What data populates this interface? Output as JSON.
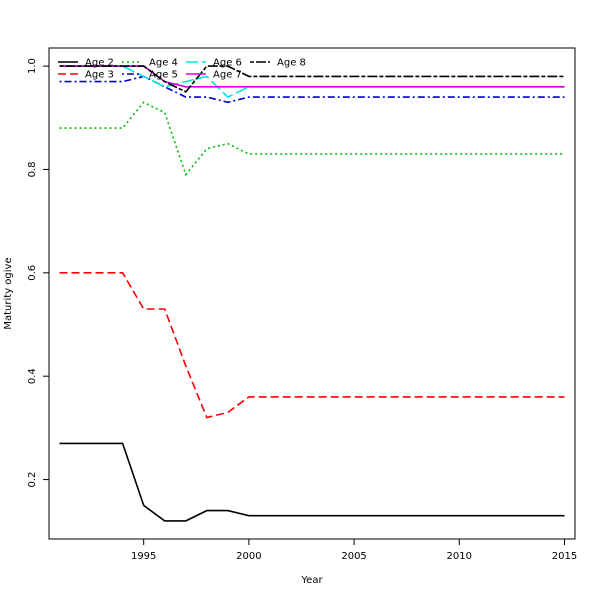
{
  "chart_data": {
    "type": "line",
    "title": "",
    "xlabel": "Year",
    "ylabel": "Maturity ogive",
    "xlim": [
      1990.5,
      2015.5
    ],
    "ylim": [
      0.085,
      1.035
    ],
    "x_ticks": [
      1995,
      2000,
      2005,
      2010,
      2015
    ],
    "y_ticks": [
      0.2,
      0.4,
      0.6,
      0.8,
      1.0
    ],
    "y_tick_labels": [
      "0.2",
      "0.4",
      "0.6",
      "0.8",
      "1.0"
    ],
    "grid": false,
    "legend_position": "top-left",
    "x": [
      1991,
      1992,
      1993,
      1994,
      1995,
      1996,
      1997,
      1998,
      1999,
      2000,
      2001,
      2002,
      2003,
      2004,
      2005,
      2006,
      2007,
      2008,
      2009,
      2010,
      2011,
      2012,
      2013,
      2014,
      2015
    ],
    "series": [
      {
        "name": "Age 2",
        "color": "#000000",
        "dash": "solid",
        "values": [
          0.27,
          0.27,
          0.27,
          0.27,
          0.15,
          0.12,
          0.12,
          0.14,
          0.14,
          0.13,
          0.13,
          0.13,
          0.13,
          0.13,
          0.13,
          0.13,
          0.13,
          0.13,
          0.13,
          0.13,
          0.13,
          0.13,
          0.13,
          0.13,
          0.13
        ]
      },
      {
        "name": "Age 3",
        "color": "#ff0000",
        "dash": "dashed",
        "values": [
          0.6,
          0.6,
          0.6,
          0.6,
          0.53,
          0.53,
          0.42,
          0.32,
          0.33,
          0.36,
          0.36,
          0.36,
          0.36,
          0.36,
          0.36,
          0.36,
          0.36,
          0.36,
          0.36,
          0.36,
          0.36,
          0.36,
          0.36,
          0.36,
          0.36
        ]
      },
      {
        "name": "Age 4",
        "color": "#00bb00",
        "dash": "dotted",
        "values": [
          0.88,
          0.88,
          0.88,
          0.88,
          0.93,
          0.91,
          0.79,
          0.84,
          0.85,
          0.83,
          0.83,
          0.83,
          0.83,
          0.83,
          0.83,
          0.83,
          0.83,
          0.83,
          0.83,
          0.83,
          0.83,
          0.83,
          0.83,
          0.83,
          0.83
        ]
      },
      {
        "name": "Age 5",
        "color": "#0000cc",
        "dash": "dotdash",
        "values": [
          0.97,
          0.97,
          0.97,
          0.97,
          0.98,
          0.96,
          0.94,
          0.94,
          0.93,
          0.94,
          0.94,
          0.94,
          0.94,
          0.94,
          0.94,
          0.94,
          0.94,
          0.94,
          0.94,
          0.94,
          0.94,
          0.94,
          0.94,
          0.94,
          0.94
        ]
      },
      {
        "name": "Age 6",
        "color": "#00e5e5",
        "dash": "longdash",
        "values": [
          1.0,
          1.0,
          1.0,
          1.0,
          0.98,
          0.96,
          0.97,
          0.98,
          0.94,
          0.96,
          0.96,
          0.96,
          0.96,
          0.96,
          0.96,
          0.96,
          0.96,
          0.96,
          0.96,
          0.96,
          0.96,
          0.96,
          0.96,
          0.96,
          0.96
        ]
      },
      {
        "name": "Age 7",
        "color": "#dd00dd",
        "dash": "solid",
        "values": [
          1.0,
          1.0,
          1.0,
          1.0,
          1.0,
          0.97,
          0.96,
          0.96,
          0.96,
          0.96,
          0.96,
          0.96,
          0.96,
          0.96,
          0.96,
          0.96,
          0.96,
          0.96,
          0.96,
          0.96,
          0.96,
          0.96,
          0.96,
          0.96,
          0.96
        ]
      },
      {
        "name": "Age 8",
        "color": "#000000",
        "dash": "twodash",
        "values": [
          1.0,
          1.0,
          1.0,
          1.0,
          1.0,
          0.97,
          0.95,
          1.0,
          1.0,
          0.98,
          0.98,
          0.98,
          0.98,
          0.98,
          0.98,
          0.98,
          0.98,
          0.98,
          0.98,
          0.98,
          0.98,
          0.98,
          0.98,
          0.98,
          0.98
        ]
      }
    ]
  }
}
